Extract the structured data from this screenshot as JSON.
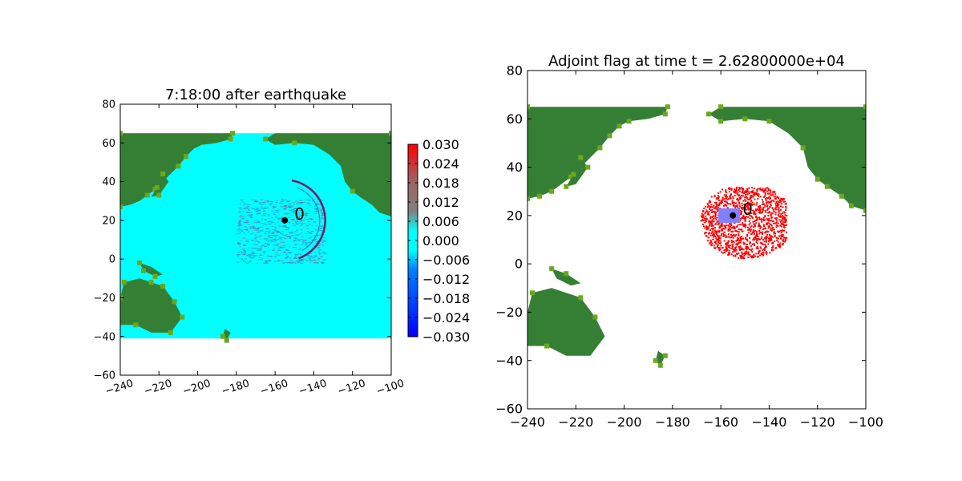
{
  "colors": {
    "ocean": "#00ffff",
    "land_dark": "#357f35",
    "land_light": "#6aa81e",
    "flag": "#ff0000",
    "patch": "#8080ff",
    "gauge": "#000000"
  },
  "chart_data": [
    {
      "type": "heatmap",
      "title": "7:18:00 after earthquake",
      "xlabel": "",
      "ylabel": "",
      "xlim": [
        -240,
        -100
      ],
      "ylim": [
        -60,
        80
      ],
      "xticks": [
        "−240",
        "−220",
        "−200",
        "−180",
        "−160",
        "−140",
        "−120",
        "−100"
      ],
      "yticks": [
        "−60",
        "−40",
        "−20",
        "0",
        "20",
        "40",
        "60",
        "80"
      ],
      "grid": false,
      "domain": {
        "x": [
          -240,
          -100
        ],
        "y": [
          -41,
          65
        ]
      },
      "gauge": {
        "x": -155,
        "y": 20,
        "label": "0"
      },
      "colorbar": {
        "range": [
          -0.03,
          0.03
        ],
        "ticks": [
          "0.030",
          "0.024",
          "0.018",
          "0.012",
          "0.006",
          "0.000",
          "−0.006",
          "−0.012",
          "−0.018",
          "−0.024",
          "−0.030"
        ]
      },
      "wave_front": {
        "center": [
          -155,
          20
        ],
        "radius_deg": 22
      }
    },
    {
      "type": "heatmap",
      "title": "Adjoint flag at time t = 2.62800000e+04",
      "xlabel": "",
      "ylabel": "",
      "xlim": [
        -240,
        -100
      ],
      "ylim": [
        -60,
        80
      ],
      "xticks": [
        "−240",
        "−220",
        "−200",
        "−180",
        "−160",
        "−140",
        "−120",
        "−100"
      ],
      "yticks": [
        "−60",
        "−40",
        "−20",
        "0",
        "20",
        "40",
        "60",
        "80"
      ],
      "grid": false,
      "domain": {
        "x": [
          -240,
          -100
        ],
        "y": [
          -41,
          65
        ]
      },
      "gauge": {
        "x": -155,
        "y": 20,
        "label": "0"
      },
      "flag_region": {
        "center": [
          -150,
          18
        ],
        "x_range": [
          -173,
          -133
        ],
        "y_range": [
          1,
          32
        ]
      },
      "patch": {
        "x_range": [
          -161,
          -152
        ],
        "y_range": [
          17,
          23
        ]
      }
    }
  ],
  "land": [
    {
      "name": "north-america",
      "pts": [
        [
          -160,
          65
        ],
        [
          -100,
          65
        ],
        [
          -100,
          22
        ],
        [
          -106,
          24
        ],
        [
          -110,
          28
        ],
        [
          -116,
          32
        ],
        [
          -120,
          35
        ],
        [
          -124,
          40
        ],
        [
          -126,
          48
        ],
        [
          -132,
          54
        ],
        [
          -140,
          59
        ],
        [
          -150,
          60
        ],
        [
          -160,
          59
        ],
        [
          -165,
          62
        ]
      ]
    },
    {
      "name": "asia",
      "pts": [
        [
          -240,
          65
        ],
        [
          -182,
          65
        ],
        [
          -183,
          62
        ],
        [
          -190,
          60
        ],
        [
          -198,
          59
        ],
        [
          -202,
          57
        ],
        [
          -206,
          53
        ],
        [
          -210,
          48
        ],
        [
          -214,
          44
        ],
        [
          -218,
          40
        ],
        [
          -222,
          36
        ],
        [
          -226,
          33
        ],
        [
          -230,
          30
        ],
        [
          -235,
          28
        ],
        [
          -240,
          27
        ]
      ]
    },
    {
      "name": "australia",
      "pts": [
        [
          -238,
          -12
        ],
        [
          -230,
          -10
        ],
        [
          -224,
          -12
        ],
        [
          -218,
          -14
        ],
        [
          -212,
          -22
        ],
        [
          -208,
          -30
        ],
        [
          -214,
          -38
        ],
        [
          -224,
          -38
        ],
        [
          -232,
          -34
        ],
        [
          -240,
          -34
        ],
        [
          -240,
          -20
        ]
      ]
    },
    {
      "name": "new-guinea",
      "pts": [
        [
          -230,
          -2
        ],
        [
          -224,
          -4
        ],
        [
          -218,
          -8
        ],
        [
          -222,
          -9
        ],
        [
          -228,
          -6
        ]
      ]
    },
    {
      "name": "new-zealand",
      "pts": [
        [
          -186,
          -36
        ],
        [
          -183,
          -38
        ],
        [
          -185,
          -42
        ],
        [
          -187,
          -40
        ]
      ]
    },
    {
      "name": "japan",
      "pts": [
        [
          -218,
          44
        ],
        [
          -215,
          40
        ],
        [
          -220,
          33
        ],
        [
          -224,
          32
        ],
        [
          -221,
          37
        ]
      ]
    }
  ]
}
